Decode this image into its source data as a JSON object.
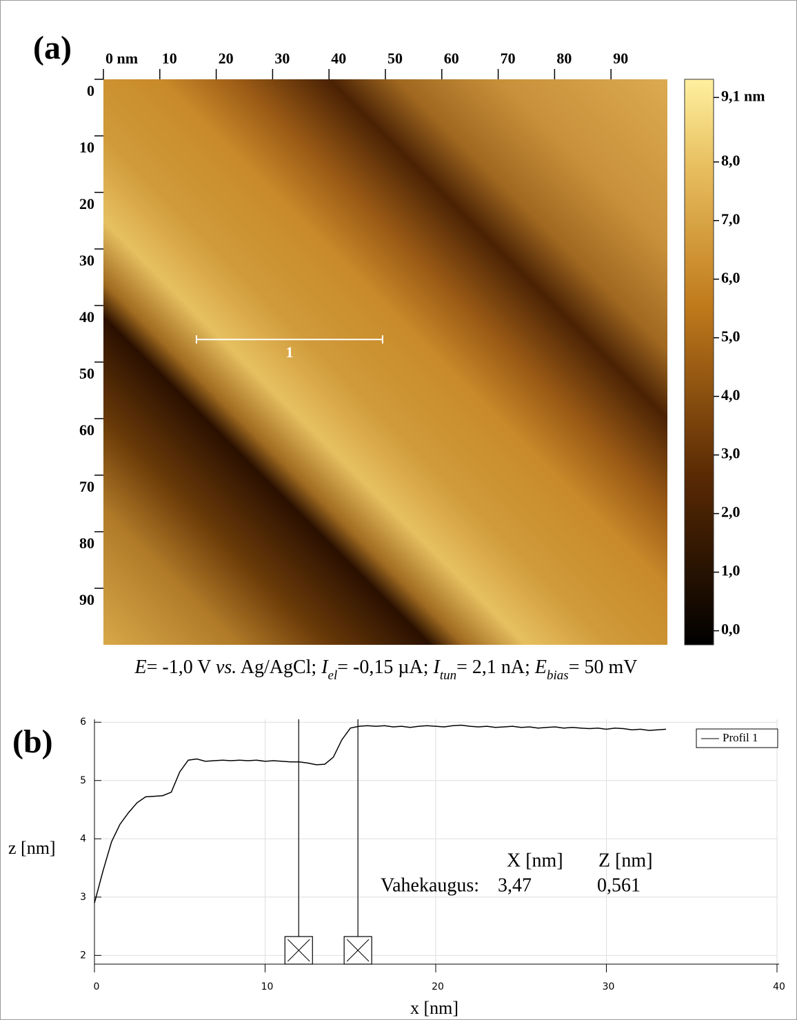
{
  "chart_data": [
    {
      "type": "image",
      "panel": "(a)",
      "xlim": [
        0,
        100
      ],
      "ylim": [
        0,
        100
      ],
      "xticks": [
        {
          "value": 0,
          "label": "0 nm"
        },
        10,
        20,
        30,
        40,
        50,
        60,
        70,
        80,
        90
      ],
      "yticks": [
        0,
        10,
        20,
        30,
        40,
        50,
        60,
        70,
        80,
        90
      ],
      "profile_line": {
        "label": "1",
        "x": [
          16.5,
          49.5
        ],
        "y": 46
      },
      "colorbar": {
        "lim": [
          -0.24,
          9.41
        ],
        "ticks": [
          {
            "value": 0,
            "label": "0,0"
          },
          {
            "value": 1,
            "label": "1,0"
          },
          {
            "value": 2,
            "label": "2,0"
          },
          {
            "value": 3,
            "label": "3,0"
          },
          {
            "value": 4,
            "label": "4,0"
          },
          {
            "value": 5,
            "label": "5,0"
          },
          {
            "value": 6,
            "label": "6,0"
          },
          {
            "value": 7,
            "label": "7,0"
          },
          {
            "value": 8,
            "label": "8,0"
          },
          {
            "value": 9.1,
            "label": "9,1 nm"
          }
        ]
      },
      "caption": [
        {
          "text": "E",
          "italic": true
        },
        {
          "text": "= -1,0 V "
        },
        {
          "text": "vs.",
          "italic": true
        },
        {
          "text": " Ag/AgCl; "
        },
        {
          "text": "I",
          "italic": true
        },
        {
          "text": "el",
          "italic": true,
          "sub": true
        },
        {
          "text": "= -0,15 µA; "
        },
        {
          "text": "I",
          "italic": true
        },
        {
          "text": "tun",
          "italic": true,
          "sub": true
        },
        {
          "text": "= 2,1 nA; "
        },
        {
          "text": "E",
          "italic": true
        },
        {
          "text": "bias",
          "italic": true,
          "sub": true
        },
        {
          "text": "= 50 mV"
        }
      ]
    },
    {
      "type": "line",
      "panel": "(b)",
      "xlabel": "x [nm]",
      "ylabel": "z [nm]",
      "xlim": [
        0,
        40
      ],
      "ylim": [
        1.85,
        6.05
      ],
      "xticks": [
        0,
        10,
        20,
        30,
        40
      ],
      "yticks": [
        2,
        3,
        4,
        5,
        6
      ],
      "grid": true,
      "legend": "upper right",
      "x": [
        0,
        0.5,
        1,
        1.5,
        2,
        2.5,
        3,
        3.5,
        4,
        4.5,
        5,
        5.5,
        6,
        6.5,
        7,
        7.5,
        8,
        8.5,
        9,
        9.5,
        10,
        10.5,
        11,
        11.5,
        12,
        12.5,
        13,
        13.5,
        14,
        14.5,
        15,
        15.5,
        16,
        16.5,
        17,
        17.5,
        18,
        18.5,
        19,
        19.5,
        20,
        20.5,
        21,
        21.5,
        22,
        22.5,
        23,
        23.5,
        24,
        24.5,
        25,
        25.5,
        26,
        26.5,
        27,
        27.5,
        28,
        28.5,
        29,
        29.5,
        30,
        30.5,
        31,
        31.5,
        32,
        32.5,
        33,
        33.5
      ],
      "series": [
        {
          "name": "Profil 1",
          "color": "#000000",
          "values": [
            2.9,
            3.45,
            3.95,
            4.25,
            4.45,
            4.62,
            4.72,
            4.73,
            4.74,
            4.8,
            5.15,
            5.35,
            5.37,
            5.33,
            5.34,
            5.35,
            5.34,
            5.35,
            5.34,
            5.35,
            5.33,
            5.34,
            5.33,
            5.32,
            5.32,
            5.3,
            5.27,
            5.28,
            5.4,
            5.7,
            5.9,
            5.93,
            5.94,
            5.93,
            5.94,
            5.92,
            5.93,
            5.91,
            5.93,
            5.94,
            5.93,
            5.92,
            5.94,
            5.95,
            5.93,
            5.92,
            5.93,
            5.91,
            5.92,
            5.93,
            5.91,
            5.92,
            5.9,
            5.91,
            5.92,
            5.9,
            5.91,
            5.9,
            5.89,
            5.9,
            5.88,
            5.9,
            5.89,
            5.87,
            5.88,
            5.86,
            5.87,
            5.88
          ]
        }
      ],
      "cursors": [
        11.97,
        15.44
      ],
      "readout": {
        "headers": [
          "X [nm]",
          "Z [nm]"
        ],
        "label": "Vahekaugus:",
        "values": [
          {
            "value": 3.47,
            "label": "3,47"
          },
          {
            "value": 0.561,
            "label": "0,561"
          }
        ]
      }
    }
  ]
}
